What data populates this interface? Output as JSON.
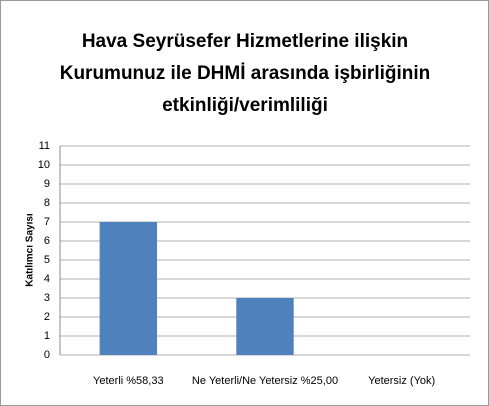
{
  "chart_data": {
    "type": "bar",
    "title": "Hava Seyrüsefer Hizmetlerine ilişkin Kurumunuz ile DHMİ arasında işbirliğinin etkinliği/verimliliği",
    "y_label": "Katılımcı Sayısı",
    "categories": [
      "Yeterli %58,33",
      "Ne Yeterli/Ne Yetersiz %25,00",
      "Yetersiz (Yok)"
    ],
    "values": [
      7,
      3,
      0
    ],
    "color": "#4f81bd",
    "ylim": [
      0,
      11
    ],
    "yticks": [
      0,
      1,
      2,
      3,
      4,
      5,
      6,
      7,
      8,
      9,
      10,
      11
    ],
    "grid": true
  }
}
